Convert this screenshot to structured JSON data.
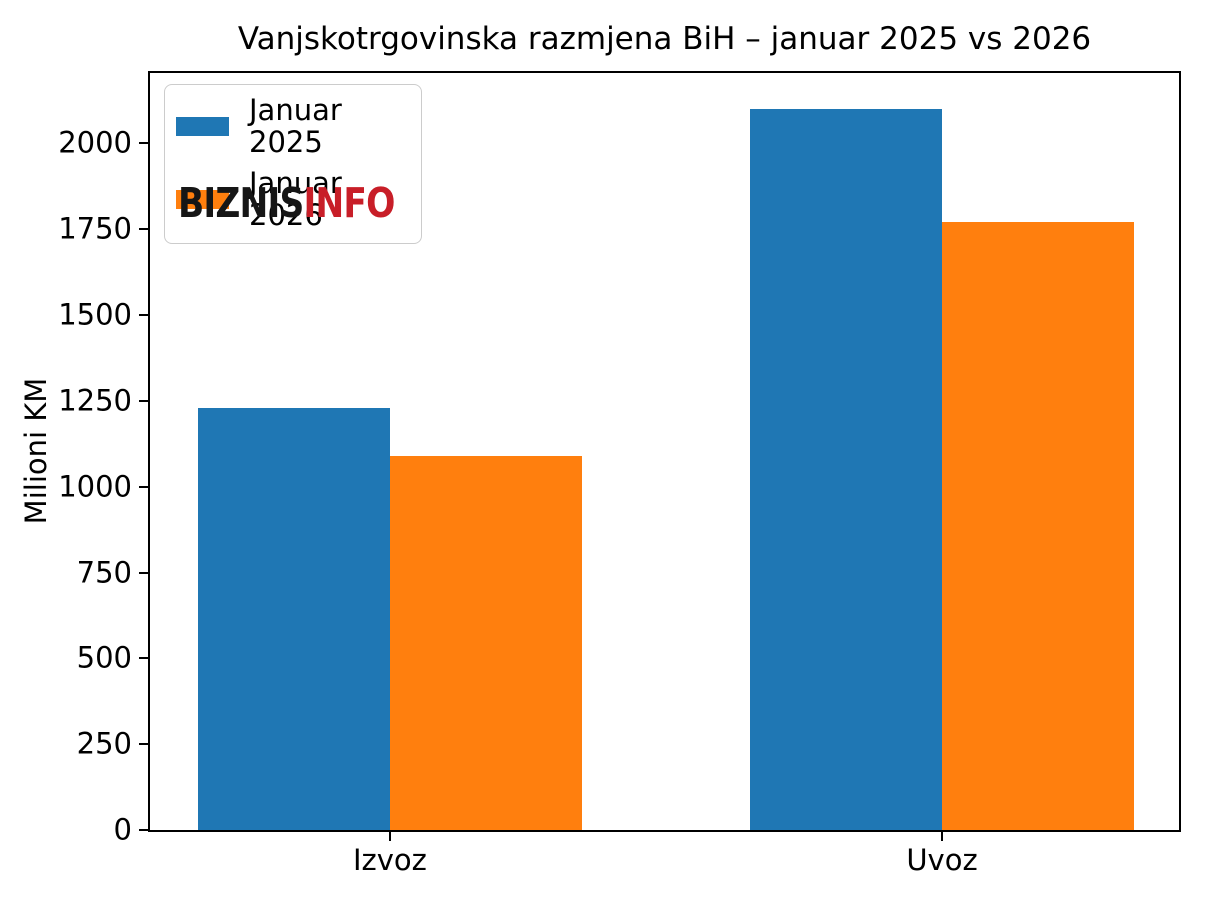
{
  "chart_data": {
    "type": "bar",
    "title": "Vanjskotrgovinska razmjena BiH – januar 2025 vs 2026",
    "ylabel": "Milioni KM",
    "xlabel": "",
    "categories": [
      "Izvoz",
      "Uvoz"
    ],
    "series": [
      {
        "name": "Januar 2025",
        "color": "#1f77b4",
        "values": [
          1230,
          2100
        ]
      },
      {
        "name": "Januar 2026",
        "color": "#ff7f0e",
        "values": [
          1090,
          1770
        ]
      }
    ],
    "yticks": [
      0,
      250,
      500,
      750,
      1000,
      1250,
      1500,
      1750,
      2000
    ],
    "ylim": [
      0,
      2205
    ],
    "grid": false,
    "legend_position": "upper left",
    "layout": {
      "group_center_pct": [
        23.32,
        76.97
      ],
      "bar_width_pct": 18.66
    }
  },
  "watermark": {
    "black": "BIZNIS",
    "red": "INFO",
    "black_color": "#161616",
    "red_color": "#c81e28"
  }
}
